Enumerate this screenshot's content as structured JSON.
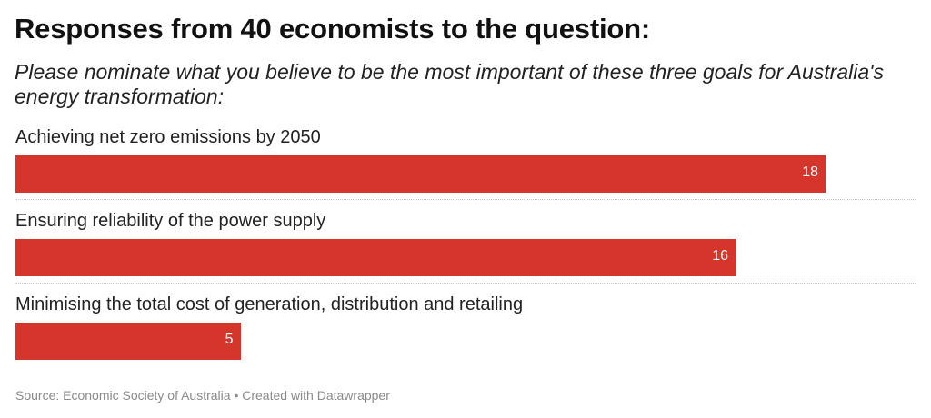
{
  "title": "Responses from 40 economists to the question:",
  "subtitle": "Please nominate what you believe to be the most important of these three goals for Australia's energy transformation:",
  "chart_data": {
    "type": "bar",
    "orientation": "horizontal",
    "categories": [
      "Achieving net zero emissions by 2050",
      "Ensuring reliability of the power supply",
      "Minimising the total cost of generation, distribution and retailing"
    ],
    "values": [
      18,
      16,
      5
    ],
    "value_labels": [
      "18",
      "16",
      "5"
    ],
    "xlim": [
      0,
      20
    ],
    "grid": false,
    "legend": "none",
    "bar_color": "#d6352b"
  },
  "footer": {
    "source": "Source: Economic Society of Australia",
    "separator": " • ",
    "credit": "Created with Datawrapper"
  }
}
